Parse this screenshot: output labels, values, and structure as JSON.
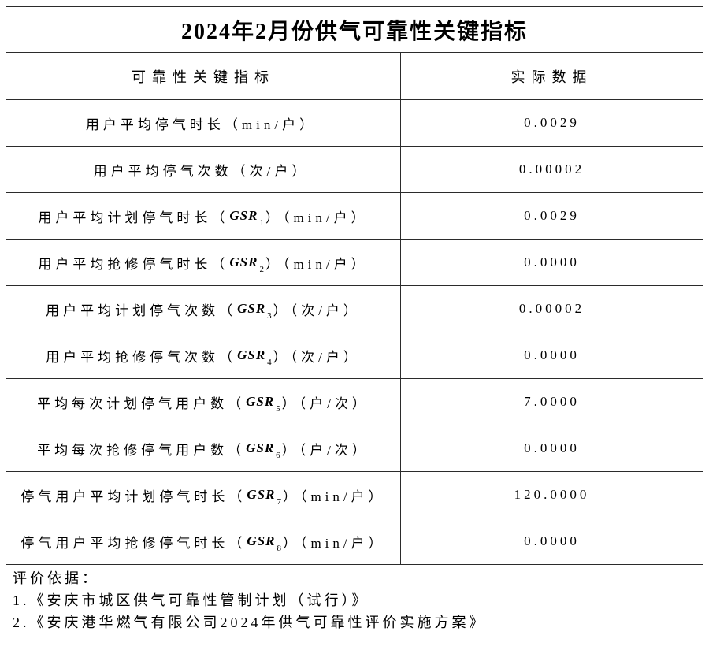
{
  "title": "2024年2月份供气可靠性关键指标",
  "table": {
    "headers": {
      "indicator": "可靠性关键指标",
      "actual": "实际数据"
    },
    "rows": [
      {
        "pre": "用户平均停气时长（min/户）",
        "gsr": "",
        "sub": "",
        "post": "",
        "value": "0.0029"
      },
      {
        "pre": "用户平均停气次数（次/户）",
        "gsr": "",
        "sub": "",
        "post": "",
        "value": "0.00002"
      },
      {
        "pre": "用户平均计划停气时长（",
        "gsr": "GSR",
        "sub": "1",
        "post": "）（min/户）",
        "value": "0.0029"
      },
      {
        "pre": "用户平均抢修停气时长（",
        "gsr": "GSR",
        "sub": "2",
        "post": "）（min/户）",
        "value": "0.0000"
      },
      {
        "pre": "用户平均计划停气次数（",
        "gsr": "GSR",
        "sub": "3",
        "post": "）（次/户）",
        "value": "0.00002"
      },
      {
        "pre": "用户平均抢修停气次数（",
        "gsr": "GSR",
        "sub": "4",
        "post": "）（次/户）",
        "value": "0.0000"
      },
      {
        "pre": "平均每次计划停气用户数（",
        "gsr": "GSR",
        "sub": "5",
        "post": "）（户/次）",
        "value": "7.0000"
      },
      {
        "pre": "平均每次抢修停气用户数（",
        "gsr": "GSR",
        "sub": "6",
        "post": "）（户/次）",
        "value": "0.0000"
      },
      {
        "pre": "停气用户平均计划停气时长（",
        "gsr": "GSR",
        "sub": "7",
        "post": "）（min/户）",
        "value": "120.0000"
      },
      {
        "pre": "停气用户平均抢修停气时长（",
        "gsr": "GSR",
        "sub": "8",
        "post": "）（min/户）",
        "value": "0.0000"
      }
    ],
    "footer": {
      "heading": "评价依据：",
      "lines": [
        "1.《安庆市城区供气可靠性管制计划（试行）》",
        "2.《安庆港华燃气有限公司2024年供气可靠性评价实施方案》"
      ]
    }
  },
  "colors": {
    "border": "#2b2b2b",
    "text": "#000000",
    "background": "#ffffff"
  }
}
